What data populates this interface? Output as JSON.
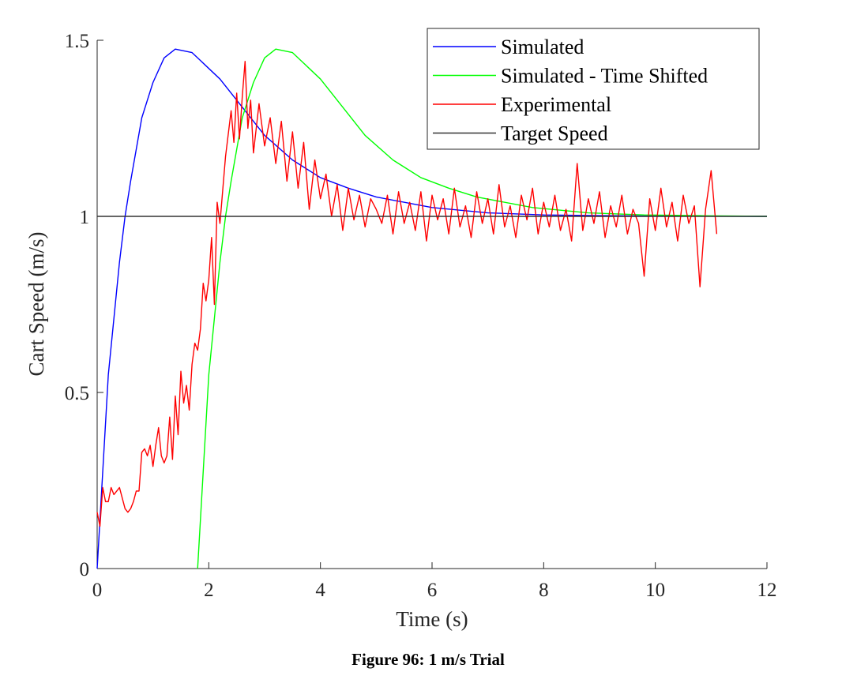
{
  "chart_data": {
    "type": "line",
    "xlabel": "Time (s)",
    "ylabel": "Cart Speed (m/s)",
    "caption": "Figure 96: 1 m/s Trial",
    "xlim": [
      0,
      12
    ],
    "xticks": [
      0,
      2,
      4,
      6,
      8,
      10,
      12
    ],
    "ylim": [
      0,
      1.5
    ],
    "yticks": [
      0,
      0.5,
      1,
      1.5
    ],
    "grid": false,
    "legend": "upper right",
    "series": [
      {
        "name": "Simulated",
        "color": "#0000ff",
        "x": [
          0,
          0.2,
          0.4,
          0.5,
          0.6,
          0.8,
          1.0,
          1.2,
          1.4,
          1.7,
          2.0,
          2.2,
          2.5,
          2.8,
          3.0,
          3.5,
          4,
          4.5,
          5,
          6,
          7,
          8,
          9,
          10,
          12
        ],
        "values": [
          0,
          0.55,
          0.87,
          1.0,
          1.1,
          1.28,
          1.38,
          1.45,
          1.475,
          1.465,
          1.42,
          1.39,
          1.33,
          1.27,
          1.23,
          1.16,
          1.11,
          1.08,
          1.055,
          1.025,
          1.01,
          1.004,
          1.002,
          1.001,
          1.0
        ]
      },
      {
        "name": "Simulated - Time Shifted",
        "color": "#00ff00",
        "x": [
          1.8,
          2.0,
          2.2,
          2.3,
          2.4,
          2.6,
          2.8,
          3.0,
          3.2,
          3.5,
          3.8,
          4.0,
          4.3,
          4.6,
          4.8,
          5.3,
          5.8,
          6.3,
          6.8,
          7.8,
          8.8,
          9.8,
          10.8,
          12
        ],
        "values": [
          0,
          0.55,
          0.87,
          1.0,
          1.1,
          1.28,
          1.38,
          1.45,
          1.475,
          1.465,
          1.42,
          1.39,
          1.33,
          1.27,
          1.23,
          1.16,
          1.11,
          1.08,
          1.055,
          1.025,
          1.01,
          1.004,
          1.002,
          1.0
        ]
      },
      {
        "name": "Experimental",
        "color": "#ff0000",
        "x": [
          0,
          0.05,
          0.1,
          0.15,
          0.2,
          0.25,
          0.3,
          0.35,
          0.4,
          0.45,
          0.5,
          0.55,
          0.6,
          0.65,
          0.7,
          0.75,
          0.8,
          0.85,
          0.9,
          0.95,
          1.0,
          1.05,
          1.1,
          1.15,
          1.2,
          1.25,
          1.3,
          1.35,
          1.4,
          1.45,
          1.5,
          1.55,
          1.6,
          1.65,
          1.7,
          1.75,
          1.8,
          1.85,
          1.9,
          1.95,
          2.0,
          2.05,
          2.1,
          2.15,
          2.2,
          2.3,
          2.4,
          2.45,
          2.5,
          2.55,
          2.6,
          2.65,
          2.7,
          2.75,
          2.8,
          2.9,
          3.0,
          3.1,
          3.2,
          3.3,
          3.4,
          3.5,
          3.6,
          3.7,
          3.8,
          3.9,
          4.0,
          4.1,
          4.2,
          4.3,
          4.4,
          4.5,
          4.6,
          4.7,
          4.8,
          4.9,
          5.0,
          5.1,
          5.2,
          5.3,
          5.4,
          5.5,
          5.6,
          5.7,
          5.8,
          5.9,
          6.0,
          6.1,
          6.2,
          6.3,
          6.4,
          6.5,
          6.6,
          6.7,
          6.8,
          6.9,
          7.0,
          7.1,
          7.2,
          7.3,
          7.4,
          7.5,
          7.6,
          7.7,
          7.8,
          7.9,
          8.0,
          8.1,
          8.2,
          8.3,
          8.4,
          8.5,
          8.6,
          8.7,
          8.8,
          8.9,
          9.0,
          9.1,
          9.2,
          9.3,
          9.4,
          9.5,
          9.6,
          9.7,
          9.8,
          9.9,
          10.0,
          10.1,
          10.2,
          10.3,
          10.4,
          10.5,
          10.6,
          10.7,
          10.8,
          10.9,
          11.0,
          11.1
        ],
        "values": [
          0.16,
          0.12,
          0.23,
          0.19,
          0.19,
          0.23,
          0.21,
          0.22,
          0.23,
          0.2,
          0.17,
          0.16,
          0.17,
          0.19,
          0.22,
          0.22,
          0.33,
          0.34,
          0.32,
          0.35,
          0.29,
          0.35,
          0.4,
          0.32,
          0.3,
          0.32,
          0.43,
          0.31,
          0.49,
          0.38,
          0.56,
          0.47,
          0.52,
          0.45,
          0.58,
          0.64,
          0.62,
          0.68,
          0.81,
          0.76,
          0.82,
          0.94,
          0.75,
          1.04,
          0.98,
          1.17,
          1.3,
          1.21,
          1.35,
          1.22,
          1.34,
          1.44,
          1.25,
          1.33,
          1.18,
          1.32,
          1.2,
          1.28,
          1.15,
          1.27,
          1.1,
          1.24,
          1.08,
          1.21,
          1.02,
          1.16,
          1.05,
          1.12,
          1.0,
          1.09,
          0.96,
          1.08,
          0.99,
          1.06,
          0.97,
          1.05,
          1.02,
          0.98,
          1.06,
          0.95,
          1.07,
          0.98,
          1.04,
          0.96,
          1.07,
          0.93,
          1.06,
          0.99,
          1.05,
          0.95,
          1.08,
          0.97,
          1.03,
          0.94,
          1.07,
          0.98,
          1.05,
          0.95,
          1.09,
          0.97,
          1.03,
          0.94,
          1.06,
          0.99,
          1.08,
          0.95,
          1.04,
          0.97,
          1.06,
          0.96,
          1.02,
          0.93,
          1.15,
          0.96,
          1.05,
          0.98,
          1.07,
          0.94,
          1.03,
          0.97,
          1.06,
          0.95,
          1.02,
          0.98,
          0.83,
          1.05,
          0.96,
          1.08,
          0.97,
          1.04,
          0.93,
          1.06,
          0.98,
          1.03,
          0.8,
          1.02,
          1.13,
          0.95
        ]
      },
      {
        "name": "Target Speed",
        "color": "#333333",
        "x": [
          0,
          12
        ],
        "values": [
          1,
          1
        ]
      }
    ]
  }
}
